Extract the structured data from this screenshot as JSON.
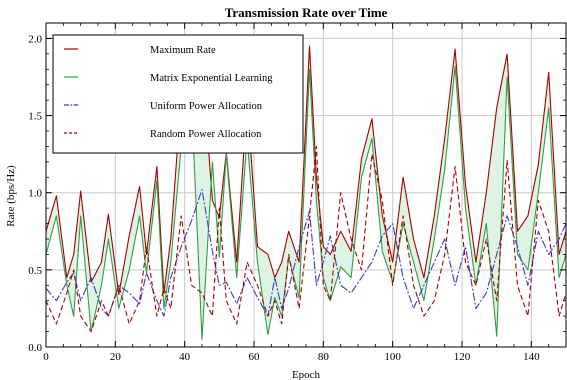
{
  "chart_data": {
    "type": "line",
    "title": "Transmission Rate over Time",
    "xlabel": "Epoch",
    "ylabel": "Rate (bps/Hz)",
    "xlim": [
      0,
      150
    ],
    "ylim": [
      0,
      2.1
    ],
    "xticks": [
      0,
      20,
      40,
      60,
      80,
      100,
      120,
      140
    ],
    "yticks": [
      0.0,
      0.5,
      1.0,
      1.5,
      2.0
    ],
    "xtick_labels": [
      "0",
      "20",
      "40",
      "60",
      "80",
      "100",
      "120",
      "140"
    ],
    "ytick_labels": [
      "0.0",
      "0.5",
      "1.0",
      "1.5",
      "2.0"
    ],
    "grid": true,
    "legend_position": "top-left",
    "fill_between": [
      "Maximum Rate",
      "Matrix Exponential Learning"
    ],
    "fill_color": "#dff3e4",
    "series": [
      {
        "name": "Maximum Rate",
        "color": "#a40000",
        "dash": "solid",
        "x": [
          0,
          3,
          6,
          8,
          10,
          13,
          16,
          18,
          21,
          24,
          27,
          29,
          32,
          34,
          36,
          39,
          42,
          45,
          48,
          50,
          52,
          55,
          58,
          61,
          64,
          66,
          68,
          70,
          73,
          76,
          78,
          80,
          82,
          85,
          88,
          91,
          94,
          97,
          100,
          103,
          106,
          109,
          112,
          115,
          118,
          121,
          124,
          127,
          130,
          133,
          136,
          139,
          142,
          145,
          148,
          150
        ],
        "y": [
          0.75,
          0.98,
          0.45,
          0.6,
          1.01,
          0.42,
          0.55,
          0.86,
          0.34,
          0.72,
          1.04,
          0.6,
          1.17,
          0.35,
          0.7,
          1.62,
          1.8,
          1.84,
          0.95,
          0.84,
          1.26,
          0.55,
          1.6,
          0.65,
          0.6,
          0.45,
          0.55,
          0.75,
          0.55,
          1.95,
          1.1,
          0.65,
          0.6,
          0.75,
          0.62,
          1.22,
          1.48,
          0.85,
          0.55,
          1.1,
          0.7,
          0.45,
          0.85,
          1.35,
          1.93,
          1.05,
          0.55,
          1.0,
          1.55,
          1.9,
          0.75,
          0.85,
          1.18,
          1.78,
          0.6,
          0.75
        ]
      },
      {
        "name": "Matrix Exponential Learning",
        "color": "#2f9e44",
        "dash": "solid",
        "x": [
          0,
          3,
          6,
          8,
          10,
          13,
          16,
          18,
          21,
          24,
          27,
          29,
          32,
          34,
          36,
          39,
          42,
          45,
          48,
          50,
          52,
          55,
          58,
          61,
          64,
          66,
          68,
          70,
          73,
          76,
          78,
          80,
          82,
          85,
          88,
          91,
          94,
          97,
          100,
          103,
          106,
          109,
          112,
          115,
          118,
          121,
          124,
          127,
          130,
          133,
          136,
          139,
          142,
          145,
          148,
          150
        ],
        "y": [
          0.6,
          0.85,
          0.4,
          0.2,
          0.85,
          0.1,
          0.4,
          0.7,
          0.25,
          0.5,
          0.85,
          0.48,
          1.08,
          0.25,
          0.55,
          1.3,
          1.58,
          0.05,
          1.2,
          0.58,
          1.25,
          0.45,
          1.35,
          0.55,
          0.08,
          0.32,
          0.2,
          0.58,
          0.32,
          1.8,
          0.95,
          0.45,
          0.3,
          0.52,
          0.45,
          1.1,
          1.35,
          0.62,
          0.42,
          0.8,
          0.55,
          0.3,
          0.7,
          1.15,
          1.82,
          0.9,
          0.4,
          0.8,
          0.07,
          1.75,
          0.6,
          0.5,
          1.0,
          1.55,
          0.45,
          0.6
        ]
      },
      {
        "name": "Uniform Power Allocation",
        "color": "#3a3ac8",
        "dash": "8,2,2,2",
        "x": [
          0,
          3,
          6,
          8,
          10,
          13,
          16,
          18,
          21,
          24,
          27,
          29,
          32,
          34,
          36,
          39,
          42,
          45,
          48,
          50,
          52,
          55,
          58,
          61,
          64,
          66,
          68,
          70,
          73,
          76,
          78,
          80,
          82,
          85,
          88,
          91,
          94,
          97,
          100,
          103,
          106,
          109,
          112,
          115,
          118,
          121,
          124,
          127,
          130,
          133,
          136,
          139,
          142,
          145,
          148,
          150
        ],
        "y": [
          0.38,
          0.3,
          0.42,
          0.48,
          0.3,
          0.45,
          0.25,
          0.2,
          0.4,
          0.35,
          0.28,
          0.48,
          0.3,
          0.2,
          0.45,
          0.65,
          0.82,
          1.02,
          0.62,
          0.4,
          0.42,
          0.28,
          0.45,
          0.32,
          0.2,
          0.45,
          0.25,
          0.38,
          0.65,
          0.88,
          0.4,
          0.55,
          0.72,
          0.4,
          0.35,
          0.45,
          0.55,
          0.72,
          0.8,
          0.45,
          0.25,
          0.4,
          0.55,
          0.7,
          0.4,
          0.65,
          0.25,
          0.35,
          0.6,
          0.85,
          0.65,
          0.4,
          0.75,
          0.6,
          0.7,
          0.8
        ]
      },
      {
        "name": "Random Power Allocation",
        "color": "#a40000",
        "dash": "5,3",
        "x": [
          0,
          3,
          6,
          8,
          10,
          13,
          16,
          18,
          21,
          24,
          27,
          29,
          32,
          34,
          36,
          39,
          42,
          45,
          48,
          50,
          52,
          55,
          58,
          61,
          64,
          66,
          68,
          70,
          73,
          76,
          78,
          80,
          82,
          85,
          88,
          91,
          94,
          97,
          100,
          103,
          106,
          109,
          112,
          115,
          118,
          121,
          124,
          127,
          130,
          133,
          136,
          139,
          142,
          145,
          148,
          150
        ],
        "y": [
          0.3,
          0.15,
          0.35,
          0.5,
          0.2,
          0.1,
          0.3,
          0.2,
          0.4,
          0.15,
          0.3,
          0.65,
          0.2,
          0.38,
          0.25,
          0.85,
          0.4,
          0.35,
          0.2,
          0.9,
          0.3,
          0.15,
          0.55,
          0.4,
          0.2,
          0.3,
          0.15,
          0.6,
          0.25,
          0.85,
          1.3,
          0.4,
          0.3,
          1.0,
          0.7,
          0.5,
          1.25,
          0.95,
          0.4,
          0.85,
          0.4,
          0.2,
          0.3,
          0.6,
          1.17,
          0.55,
          0.4,
          0.7,
          0.3,
          1.21,
          0.4,
          0.2,
          0.95,
          0.75,
          0.2,
          0.35
        ]
      }
    ]
  }
}
